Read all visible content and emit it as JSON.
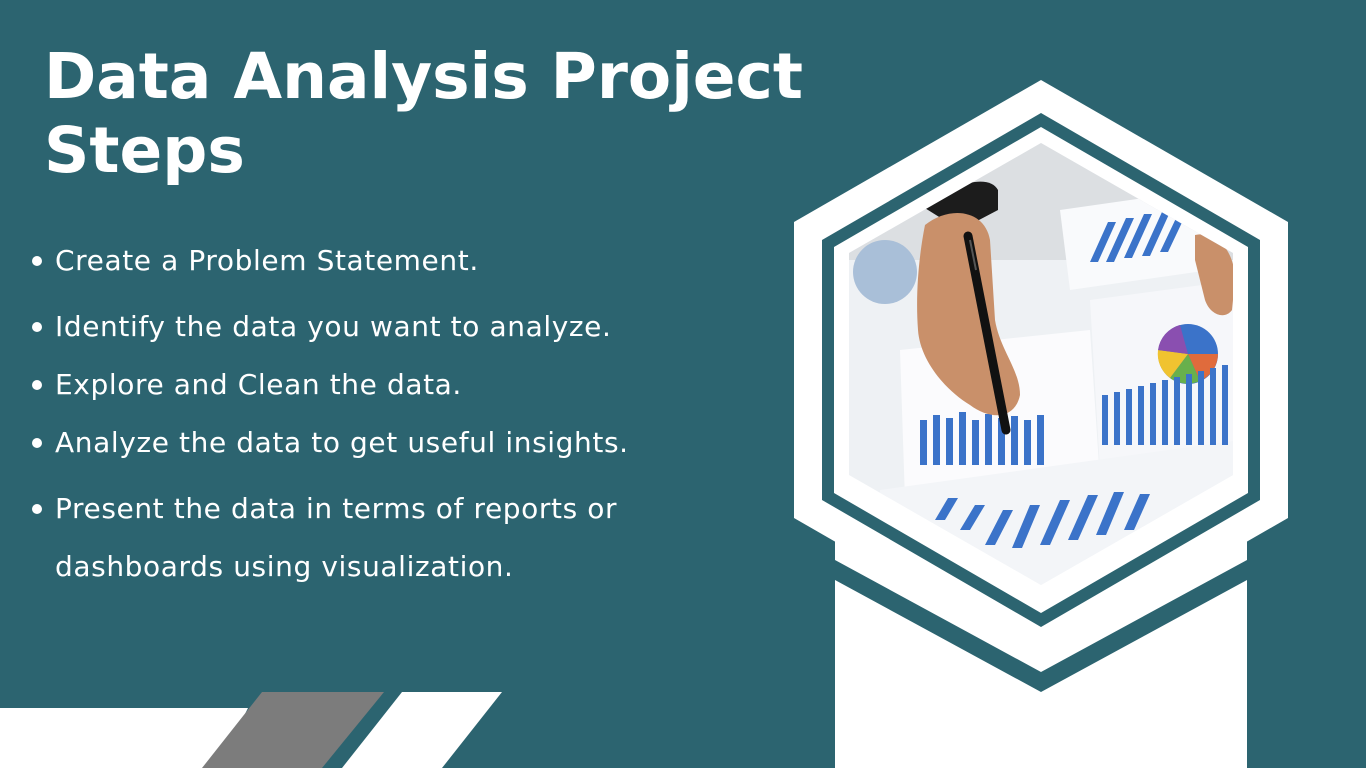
{
  "slide": {
    "title": "Data Analysis Project Steps",
    "bullets": [
      "Create a Problem Statement.",
      "Identify the data you want to analyze.",
      "Explore and Clean the data.",
      "Analyze the data to get useful insights.",
      "Present the data in terms of reports or dashboards using visualization."
    ]
  },
  "colors": {
    "background": "#2c6470",
    "accent_white": "#ffffff",
    "stripe_gray": "#7c7c7c",
    "chart_blue": "#3b73c9"
  },
  "photo": {
    "description_icon": "hand-with-pen-over-charts-photo"
  }
}
